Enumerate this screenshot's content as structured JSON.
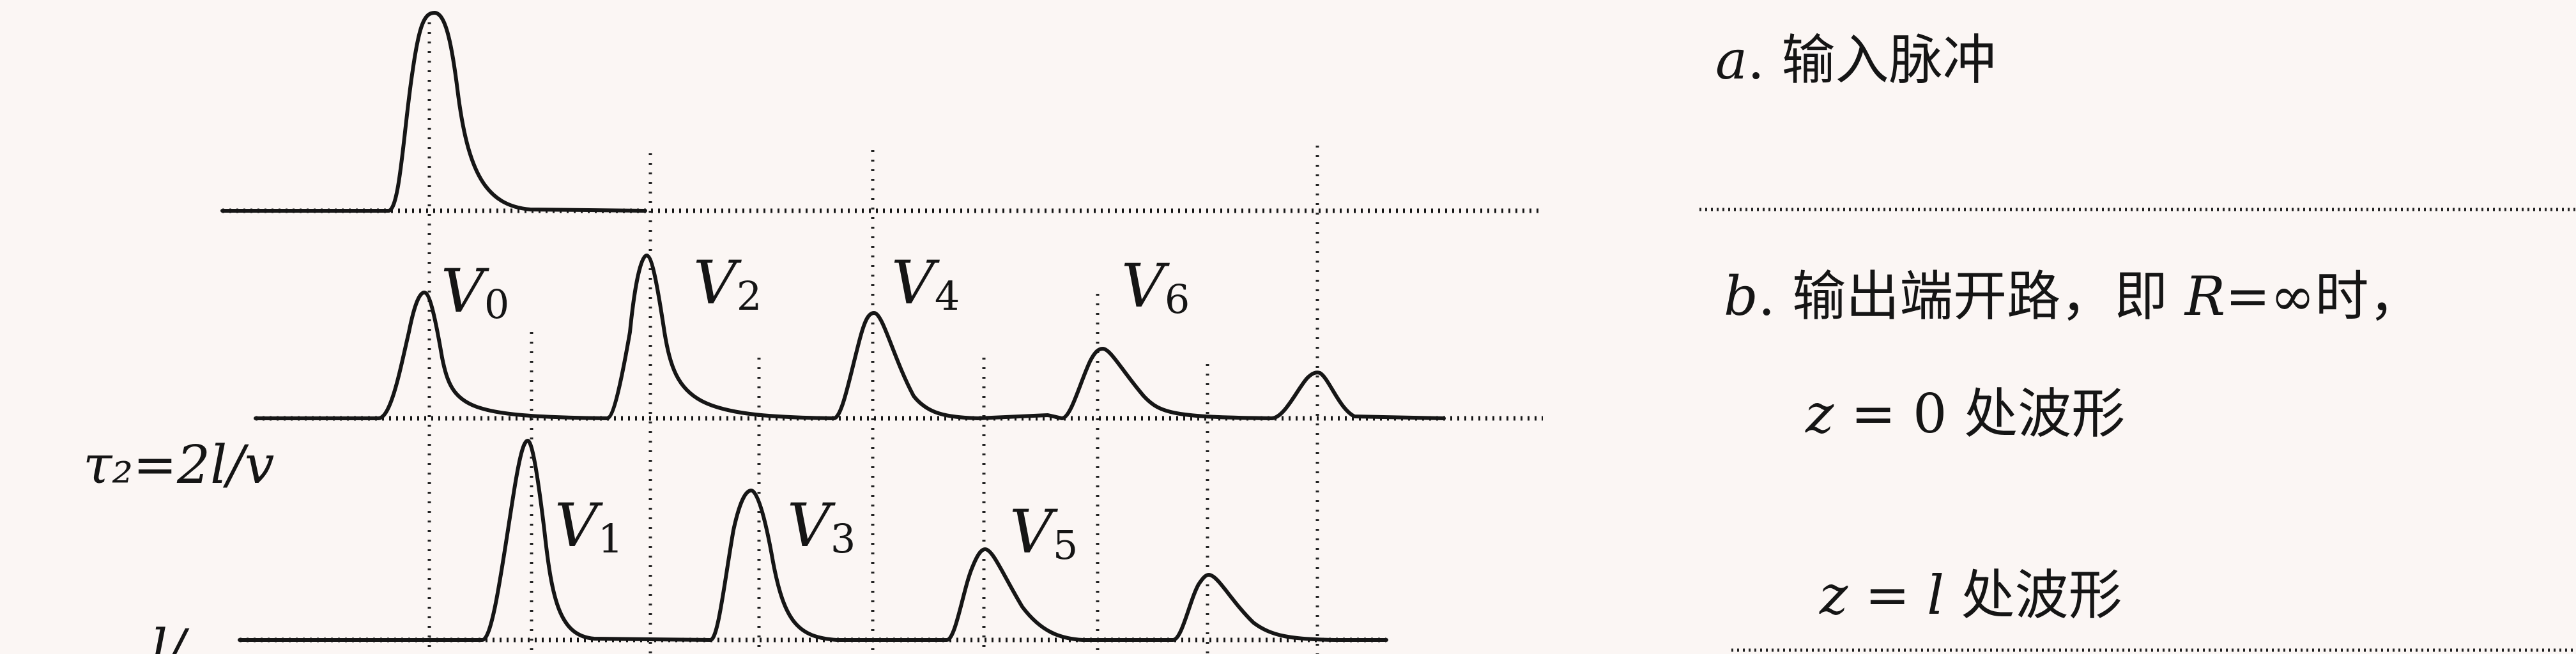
{
  "pulses": {
    "v0": "V",
    "v0_sub": "0",
    "v1": "V",
    "v1_sub": "1",
    "v2": "V",
    "v2_sub": "2",
    "v3": "V",
    "v3_sub": "3",
    "v4": "V",
    "v4_sub": "4",
    "v5": "V",
    "v5_sub": "5",
    "v6": "V",
    "v6_sub": "6"
  },
  "tau2_label": "τ₂=2l/v",
  "partial_label": "l/",
  "captions": {
    "a_letter": "a",
    "a_text": ". 输入脉冲",
    "b_letter": "b",
    "b_text1": ". 输出端开路，即 ",
    "b_R": "R",
    "b_text2": "=∞时，",
    "z0_var": "z",
    "z0_text": " = 0 处波形",
    "zl_var": "z",
    "zl_eq": " = ",
    "zl_l": "l",
    "zl_text": " 处波形"
  }
}
